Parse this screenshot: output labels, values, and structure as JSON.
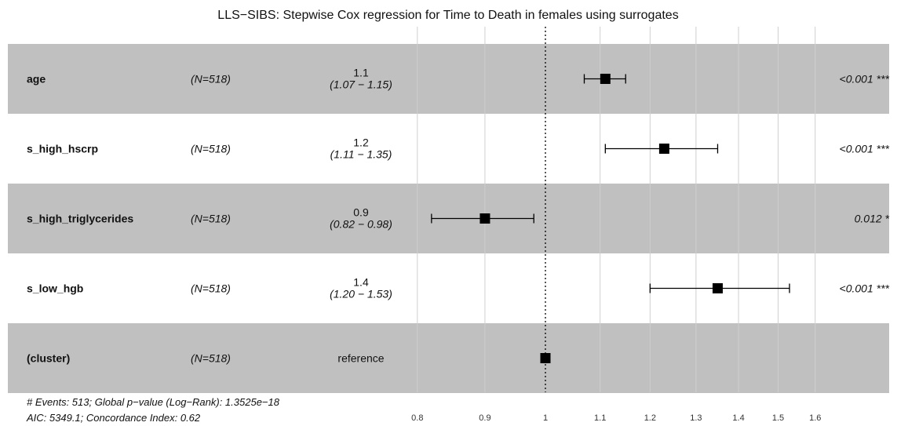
{
  "chart_data": {
    "type": "forest",
    "title": "LLS−SIBS: Stepwise Cox regression for Time to Death in females using surrogates",
    "xscale": "log",
    "xlim": [
      0.75,
      1.65
    ],
    "reference_line": 1,
    "xticks": [
      0.8,
      0.9,
      1,
      1.1,
      1.2,
      1.3,
      1.4,
      1.5,
      1.6
    ],
    "xtick_labels": [
      "0.8",
      "0.9",
      "1",
      "1.1",
      "1.2",
      "1.3",
      "1.4",
      "1.5",
      "1.6"
    ],
    "rows": [
      {
        "variable": "age",
        "n_label": "(N=518)",
        "hr_label": "1.1",
        "ci_label": "(1.07 − 1.15)",
        "hr": 1.11,
        "lower": 1.07,
        "upper": 1.15,
        "p_label": "<0.001 ***",
        "shaded": true
      },
      {
        "variable": "s_high_hscrp",
        "n_label": "(N=518)",
        "hr_label": "1.2",
        "ci_label": "(1.11 − 1.35)",
        "hr": 1.23,
        "lower": 1.11,
        "upper": 1.35,
        "p_label": "<0.001 ***",
        "shaded": false
      },
      {
        "variable": "s_high_triglycerides",
        "n_label": "(N=518)",
        "hr_label": "0.9",
        "ci_label": "(0.82 − 0.98)",
        "hr": 0.9,
        "lower": 0.82,
        "upper": 0.98,
        "p_label": "0.012 *",
        "shaded": true
      },
      {
        "variable": "s_low_hgb",
        "n_label": "(N=518)",
        "hr_label": "1.4",
        "ci_label": "(1.20 − 1.53)",
        "hr": 1.35,
        "lower": 1.2,
        "upper": 1.53,
        "p_label": "<0.001 ***",
        "shaded": false
      },
      {
        "variable": "(cluster)",
        "n_label": "(N=518)",
        "reference_label": "reference",
        "hr": 1,
        "p_label": "",
        "shaded": true
      }
    ],
    "footnotes": [
      "# Events: 513; Global p−value (Log−Rank): 1.3525e−18",
      "AIC: 5349.1; Concordance Index: 0.62"
    ]
  },
  "colors": {
    "row_shade": "#c0c0c0",
    "grid": "#cfcfcf",
    "ink": "#000000",
    "background": "#ffffff"
  }
}
